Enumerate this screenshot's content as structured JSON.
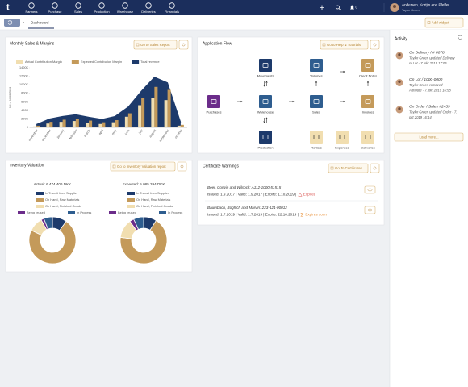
{
  "nav": {
    "logo": "t",
    "items": [
      "Partners",
      "Purchase",
      "Sales",
      "Production",
      "Warehouse",
      "Deliveries",
      "Financials"
    ],
    "notifications": "0",
    "company": "Andersen, Kortjin and Pfeffer",
    "user": "Taylor Green"
  },
  "toolbar": {
    "tab": "Dashboard",
    "add_widget": "Add widget"
  },
  "widgets": {
    "sales": {
      "button": "Go to Sales Report"
    },
    "flow": {
      "title": "Application Flow",
      "button": "Go to Help & Tutorials",
      "nodes": [
        "Movements",
        "Volumes",
        "Credit Notes",
        "Purchases",
        "Warehouse",
        "Sales",
        "Invoices",
        "Production",
        "Rentals",
        "Expenses",
        "Deliveries"
      ]
    },
    "inventory": {
      "title": "Inventory Valuation",
      "button": "Go to Inventory Valuation report"
    },
    "certificates": {
      "title": "Certificate Warnings",
      "button": "Go To Certificates",
      "items": [
        {
          "name": "Beer, Corwin and Wilsock: A112-1000-51515",
          "dates": "Issued: 1.9.2017 | Valid: 1.9.2017 | Expire: 1.10.2019 |",
          "status": "Expired"
        },
        {
          "name": "Baumbach, Boghich and Marvin: 223-121-00012",
          "dates": "Issued: 1.7.2019 | Valid: 1.7.2019 | Expire: 22.10.2019 |",
          "status": "Expires soon"
        }
      ]
    }
  },
  "activity": {
    "title": "Activity",
    "entries": [
      {
        "title": "On Delivery / # 8078",
        "lines": [
          "Taylor Green updated Delivery",
          "of Lot - 7. okt 2019 17:05"
        ]
      },
      {
        "title": "On Lot / 1000-0000",
        "lines": [
          "Taylor Green removed",
          "Attribute - 7. okt 2019 16:58"
        ]
      },
      {
        "title": "On Order / Sales #2439",
        "lines": [
          "Taylor Green updated Order - 7.",
          "okt 2019 16:14"
        ]
      }
    ],
    "load_more": "Load more..."
  },
  "chart_data": [
    {
      "type": "bar",
      "title": "Monthly Sales & Margins",
      "y_label": "1K = 1000 DKK",
      "categories": [
        "november",
        "december",
        "january",
        "february",
        "march",
        "april",
        "may",
        "june",
        "july",
        "august",
        "september",
        "october"
      ],
      "series": [
        {
          "name": "Actual Contribution Margin",
          "type": "bar",
          "color": "#f1deb0",
          "values": [
            25000,
            90000,
            130000,
            150000,
            110000,
            80000,
            120000,
            250000,
            520000,
            700000,
            640000,
            40000
          ]
        },
        {
          "name": "Expected Contribution Margin",
          "type": "bar",
          "color": "#c49a5a",
          "values": [
            40000,
            130000,
            180000,
            200000,
            160000,
            120000,
            170000,
            330000,
            700000,
            950000,
            880000,
            60000
          ]
        },
        {
          "name": "Total revenue",
          "type": "area",
          "color": "#1d3a6b",
          "values": [
            70000,
            200000,
            260000,
            300000,
            240000,
            190000,
            260000,
            480000,
            850000,
            1180000,
            1050000,
            120000
          ]
        }
      ],
      "ylim": [
        0,
        1400000
      ],
      "yticks": [
        0,
        {
          "value": 200000,
          "label": "200K"
        },
        {
          "value": 400000,
          "label": "400K"
        },
        {
          "value": 600000,
          "label": "600K"
        },
        {
          "value": 800000,
          "label": "800K"
        },
        {
          "value": 1000000,
          "label": "1000K"
        },
        {
          "value": 1200000,
          "label": "1200K"
        },
        {
          "value": 1400000,
          "label": "1400K"
        }
      ],
      "grid": false,
      "legend": "top"
    },
    {
      "type": "pie",
      "donut": true,
      "title": "Actual: 6.474.406 DKK",
      "categories": [
        "In Transit from Supplier",
        "On Hand, Raw Materials",
        "On Hand, Finished Goods",
        "Being reused",
        "In Process"
      ],
      "colors": [
        "#1d3a6b",
        "#c49a5a",
        "#f1deb0",
        "#6b2c8a",
        "#2e5d8f"
      ],
      "values": [
        10,
        72,
        10,
        2,
        6
      ]
    },
    {
      "type": "pie",
      "donut": true,
      "title": "Expected: 5.085.394 DKK",
      "categories": [
        "In Transit from Supplier",
        "On Hand, Raw Materials",
        "On Hand, Finished Goods",
        "Being reused",
        "In Process"
      ],
      "colors": [
        "#1d3a6b",
        "#c49a5a",
        "#f1deb0",
        "#6b2c8a",
        "#2e5d8f"
      ],
      "values": [
        9,
        68,
        13,
        3,
        7
      ]
    }
  ]
}
